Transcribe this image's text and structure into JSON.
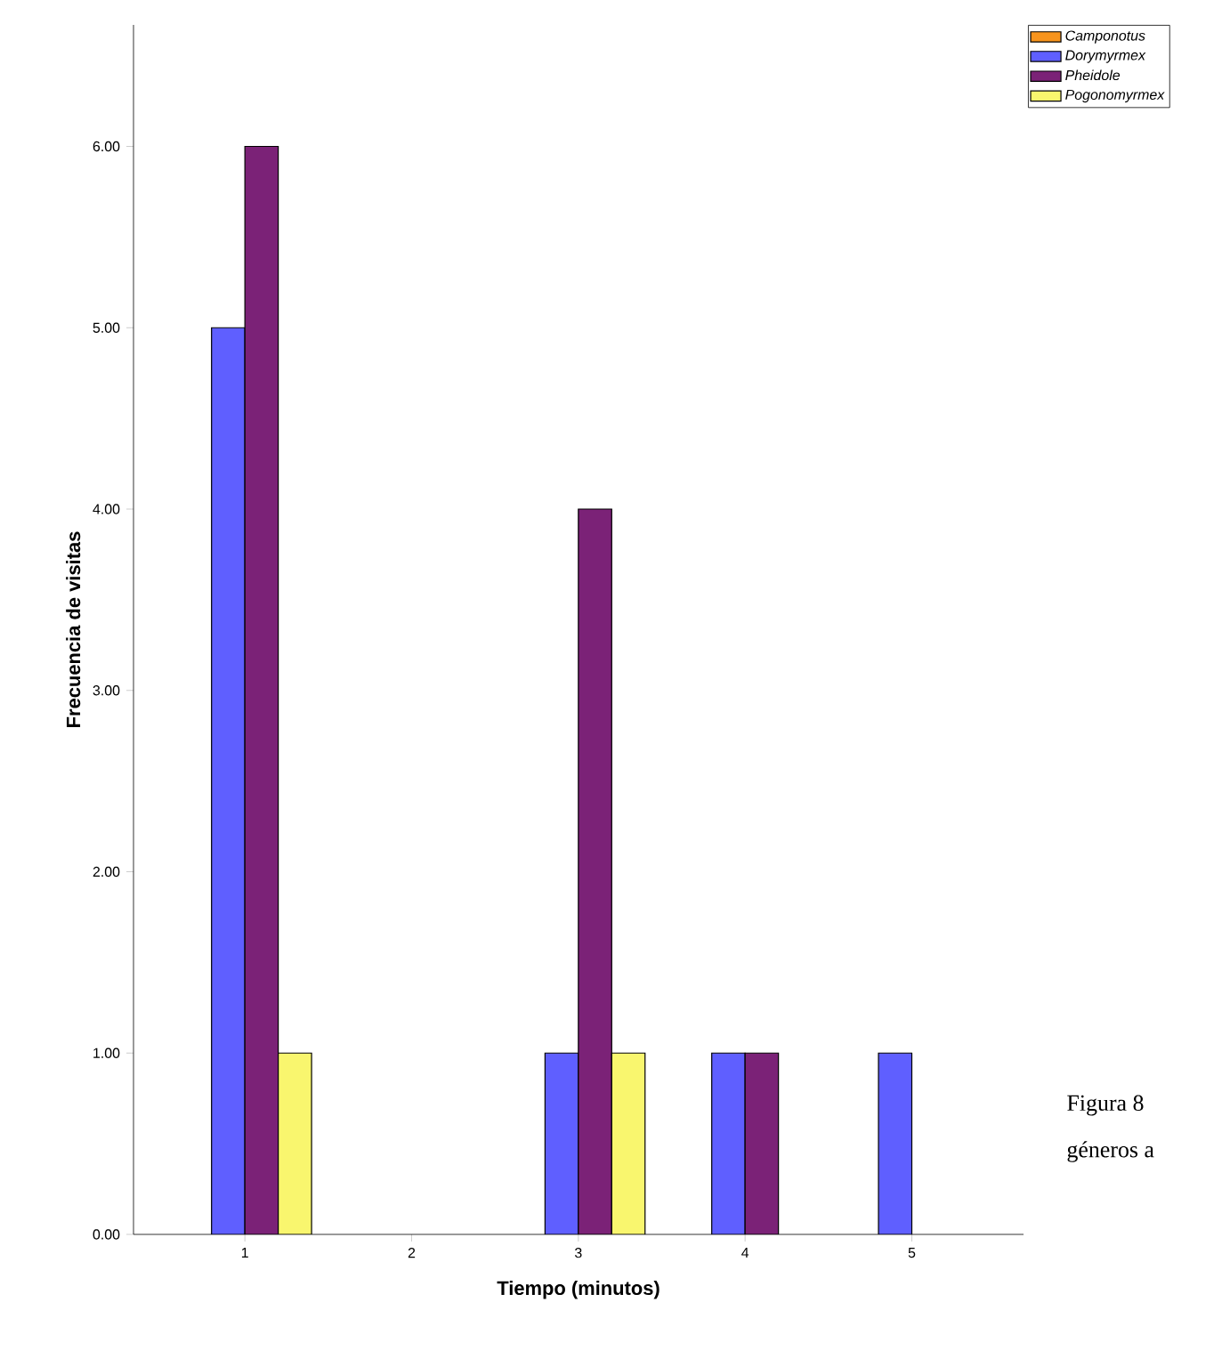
{
  "chart_data": {
    "type": "bar",
    "xlabel": "Tiempo (minutos)",
    "ylabel": "Frecuencia de visitas",
    "categories": [
      "1",
      "2",
      "3",
      "4",
      "5"
    ],
    "series": [
      {
        "name": "Camponotus",
        "color": "#f7941d",
        "values": [
          null,
          null,
          null,
          null,
          null
        ]
      },
      {
        "name": "Dorymyrmex",
        "color": "#5f5fff",
        "values": [
          5,
          null,
          1,
          1,
          1
        ]
      },
      {
        "name": "Pheidole",
        "color": "#7b2277",
        "values": [
          6,
          null,
          4,
          1,
          null
        ]
      },
      {
        "name": "Pogonomyrmex",
        "color": "#f9f66e",
        "values": [
          1,
          null,
          1,
          null,
          null
        ]
      }
    ],
    "ylim": [
      0,
      6.67
    ],
    "yticks": [
      {
        "value": 0,
        "label": "0.00"
      },
      {
        "value": 1,
        "label": "1.00"
      },
      {
        "value": 2,
        "label": "2.00"
      },
      {
        "value": 3,
        "label": "3.00"
      },
      {
        "value": 4,
        "label": "4.00"
      },
      {
        "value": 5,
        "label": "5.00"
      },
      {
        "value": 6,
        "label": "6.00"
      }
    ],
    "legend": "top right",
    "grid": false,
    "annotations": [
      "Figura 8",
      "géneros a"
    ]
  }
}
